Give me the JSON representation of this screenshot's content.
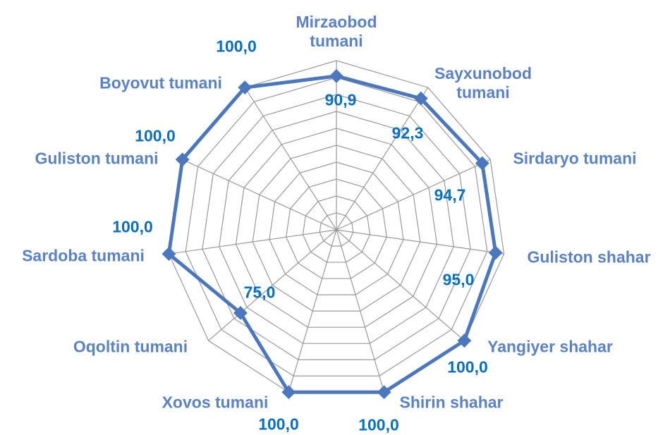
{
  "chart_data": {
    "type": "radar",
    "categories": [
      "Mirzaobod tumani",
      "Sayxunobod tumani",
      "Sirdaryo tumani",
      "Guliston shahar",
      "Yangiyer shahar",
      "Shirin shahar",
      "Xovos tumani",
      "Oqoltin tumani",
      "Sardoba tumani",
      "Guliston tumani",
      "Boyovut tumani"
    ],
    "values": [
      90.9,
      92.3,
      94.7,
      95.0,
      100.0,
      100.0,
      100.0,
      75.0,
      100.0,
      100.0,
      100.0
    ],
    "value_labels": [
      "90,9",
      "92,3",
      "94,7",
      "95,0",
      "100,0",
      "100,0",
      "100,0",
      "75,0",
      "100,0",
      "100,0",
      "100,0"
    ],
    "color": "#4a77bd",
    "ylim": [
      0,
      100
    ],
    "yticks": [
      0,
      10,
      20,
      30,
      40,
      50,
      60,
      70,
      80,
      90,
      100
    ],
    "grid": true
  }
}
